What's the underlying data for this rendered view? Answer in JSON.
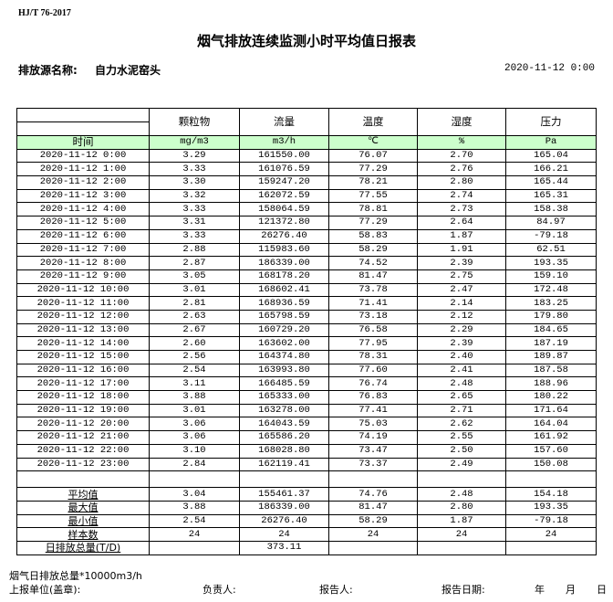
{
  "header": {
    "standard": "HJ/T  76-2017",
    "title": "烟气排放连续监测小时平均值日报表",
    "source_label": "排放源名称:",
    "source_name": "自力水泥窑头",
    "report_time": "2020-11-12 0:00"
  },
  "table": {
    "columns": [
      "颗粒物",
      "流量",
      "温度",
      "湿度",
      "压力"
    ],
    "time_label": "时间",
    "units": [
      "mg/m3",
      "m3/h",
      "℃",
      "%",
      "Pa"
    ],
    "header_color": "#ccffcc",
    "rows": [
      [
        "2020-11-12 0:00",
        "3.29",
        "161550.00",
        "76.07",
        "2.70",
        "165.04"
      ],
      [
        "2020-11-12 1:00",
        "3.33",
        "161076.59",
        "77.29",
        "2.76",
        "166.21"
      ],
      [
        "2020-11-12 2:00",
        "3.30",
        "159247.20",
        "78.21",
        "2.80",
        "165.44"
      ],
      [
        "2020-11-12 3:00",
        "3.32",
        "162072.59",
        "77.55",
        "2.74",
        "165.31"
      ],
      [
        "2020-11-12 4:00",
        "3.33",
        "158064.59",
        "78.81",
        "2.73",
        "158.38"
      ],
      [
        "2020-11-12 5:00",
        "3.31",
        "121372.80",
        "77.29",
        "2.64",
        "84.97"
      ],
      [
        "2020-11-12 6:00",
        "3.33",
        "26276.40",
        "58.83",
        "1.87",
        "-79.18"
      ],
      [
        "2020-11-12 7:00",
        "2.88",
        "115983.60",
        "58.29",
        "1.91",
        "62.51"
      ],
      [
        "2020-11-12 8:00",
        "2.87",
        "186339.00",
        "74.52",
        "2.39",
        "193.35"
      ],
      [
        "2020-11-12 9:00",
        "3.05",
        "168178.20",
        "81.47",
        "2.75",
        "159.10"
      ],
      [
        "2020-11-12 10:00",
        "3.01",
        "168602.41",
        "73.78",
        "2.47",
        "172.48"
      ],
      [
        "2020-11-12 11:00",
        "2.81",
        "168936.59",
        "71.41",
        "2.14",
        "183.25"
      ],
      [
        "2020-11-12 12:00",
        "2.63",
        "165798.59",
        "73.18",
        "2.12",
        "179.80"
      ],
      [
        "2020-11-12 13:00",
        "2.67",
        "160729.20",
        "76.58",
        "2.29",
        "184.65"
      ],
      [
        "2020-11-12 14:00",
        "2.60",
        "163602.00",
        "77.95",
        "2.39",
        "187.19"
      ],
      [
        "2020-11-12 15:00",
        "2.56",
        "164374.80",
        "78.31",
        "2.40",
        "189.87"
      ],
      [
        "2020-11-12 16:00",
        "2.54",
        "163993.80",
        "77.60",
        "2.41",
        "187.58"
      ],
      [
        "2020-11-12 17:00",
        "3.11",
        "166485.59",
        "76.74",
        "2.48",
        "188.96"
      ],
      [
        "2020-11-12 18:00",
        "3.88",
        "165333.00",
        "76.83",
        "2.65",
        "180.22"
      ],
      [
        "2020-11-12 19:00",
        "3.01",
        "163278.00",
        "77.41",
        "2.71",
        "171.64"
      ],
      [
        "2020-11-12 20:00",
        "3.06",
        "164043.59",
        "75.03",
        "2.62",
        "164.04"
      ],
      [
        "2020-11-12 21:00",
        "3.06",
        "165586.20",
        "74.19",
        "2.55",
        "161.92"
      ],
      [
        "2020-11-12 22:00",
        "3.10",
        "168028.80",
        "73.47",
        "2.50",
        "157.60"
      ],
      [
        "2020-11-12 23:00",
        "2.84",
        "162119.41",
        "73.37",
        "2.49",
        "150.08"
      ]
    ],
    "stats": [
      [
        "平均值",
        "3.04",
        "155461.37",
        "74.76",
        "2.48",
        "154.18"
      ],
      [
        "最大值",
        "3.88",
        "186339.00",
        "81.47",
        "2.80",
        "193.35"
      ],
      [
        "最小值",
        "2.54",
        "26276.40",
        "58.29",
        "1.87",
        "-79.18"
      ],
      [
        "样本数",
        "24",
        "24",
        "24",
        "24",
        "24"
      ],
      [
        "日排放总量(T/D)",
        "",
        "373.11",
        "",
        "",
        ""
      ]
    ]
  },
  "footer": {
    "note": "烟气日排放总量*10000m3/h",
    "unit_label": "上报单位(盖章):",
    "manager_label": "负责人:",
    "reporter_label": "报告人:",
    "date_label": "报告日期:",
    "year": "年",
    "month": "月",
    "day": "日"
  }
}
